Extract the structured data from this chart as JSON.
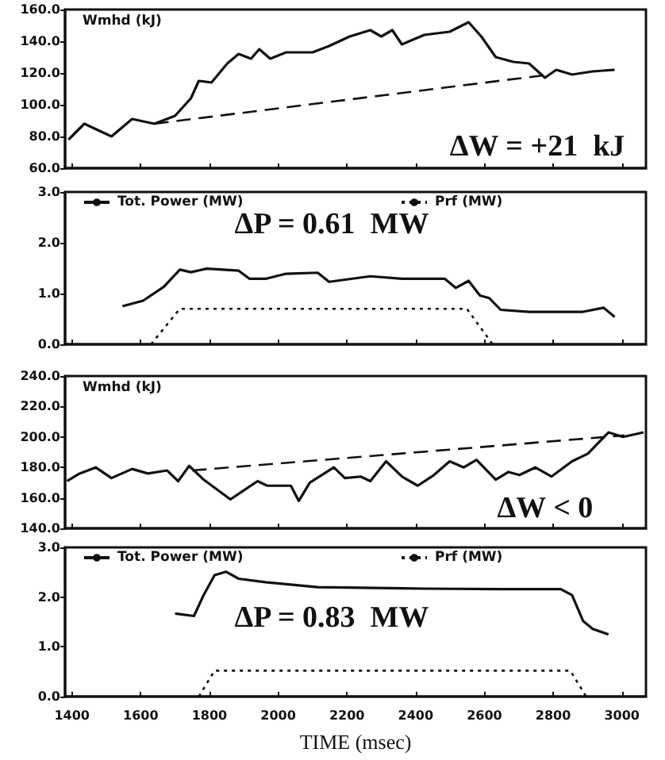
{
  "chart_data": [
    {
      "type": "line",
      "ylabel": "Wmhd (kJ)",
      "annotations": [
        "ΔW = +21  kJ"
      ],
      "marker": "none",
      "tick_labels": "y",
      "xlim": [
        1380,
        3070
      ],
      "xticks": [
        1400,
        1600,
        1800,
        2000,
        2200,
        2400,
        2600,
        2800,
        3000
      ],
      "ylim": [
        60,
        160
      ],
      "yticks": [
        {
          "value": 60,
          "label": "60.0"
        },
        {
          "value": 80,
          "label": "80.0"
        },
        {
          "value": 100,
          "label": "100.0"
        },
        {
          "value": 120,
          "label": "120.0"
        },
        {
          "value": 140,
          "label": "140.0"
        },
        {
          "value": 160,
          "label": "160.0"
        }
      ],
      "series": [
        {
          "color": "#111111",
          "line_style": "solid",
          "x": [
            1390,
            1436,
            1515,
            1575,
            1640,
            1700,
            1746,
            1769,
            1806,
            1852,
            1885,
            1921,
            1945,
            1977,
            2023,
            2100,
            2148,
            2208,
            2268,
            2300,
            2332,
            2360,
            2425,
            2499,
            2554,
            2591,
            2633,
            2684,
            2730,
            2776,
            2809,
            2855,
            2915,
            2979
          ],
          "values": [
            78,
            88,
            80,
            91,
            88,
            93,
            104,
            115,
            114,
            126,
            132,
            129,
            135,
            129,
            133,
            133,
            137,
            143,
            147,
            143,
            147,
            138,
            144,
            146,
            152,
            143,
            130,
            127,
            126,
            117,
            122,
            119,
            121,
            122
          ]
        },
        {
          "color": "#111111",
          "line_style": "dashed",
          "x": [
            1640,
            2790
          ],
          "values": [
            88,
            119
          ]
        }
      ]
    },
    {
      "type": "line",
      "marker": "none",
      "legend": "top left",
      "annotations": [
        "ΔP = 0.61  MW"
      ],
      "tick_labels": "y",
      "xlim": [
        1380,
        3070
      ],
      "xticks": [
        1400,
        1600,
        1800,
        2000,
        2200,
        2400,
        2600,
        2800,
        3000
      ],
      "ylim": [
        0,
        3
      ],
      "yticks": [
        {
          "value": 0,
          "label": "0.0"
        },
        {
          "value": 1,
          "label": "1.0"
        },
        {
          "value": 2,
          "label": "2.0"
        },
        {
          "value": 3,
          "label": "3.0"
        }
      ],
      "series": [
        {
          "name": "Tot. Power (MW)",
          "color": "#111111",
          "line_style": "solid",
          "x": [
            1547,
            1607,
            1667,
            1714,
            1746,
            1792,
            1885,
            1917,
            1963,
            2023,
            2115,
            2148,
            2268,
            2360,
            2485,
            2517,
            2554,
            2587,
            2614,
            2647,
            2730,
            2887,
            2947,
            2979
          ],
          "values": [
            0.75,
            0.86,
            1.13,
            1.47,
            1.42,
            1.49,
            1.45,
            1.29,
            1.29,
            1.39,
            1.41,
            1.23,
            1.34,
            1.29,
            1.29,
            1.11,
            1.25,
            0.96,
            0.91,
            0.68,
            0.64,
            0.64,
            0.72,
            0.54
          ]
        },
        {
          "name": "Prf (MW)",
          "color": "#111111",
          "line_style": "dotted",
          "x": [
            1630,
            1714,
            2549,
            2624
          ],
          "values": [
            0,
            0.7,
            0.7,
            0
          ]
        }
      ]
    },
    {
      "type": "line",
      "ylabel": "Wmhd (kJ)",
      "annotations": [
        "ΔW < 0"
      ],
      "marker": "none",
      "tick_labels": "y",
      "xlim": [
        1380,
        3070
      ],
      "xticks": [
        1400,
        1600,
        1800,
        2000,
        2200,
        2400,
        2600,
        2800,
        3000
      ],
      "ylim": [
        140,
        240
      ],
      "yticks": [
        {
          "value": 140,
          "label": "140.0"
        },
        {
          "value": 160,
          "label": "160.0"
        },
        {
          "value": 180,
          "label": "180.0"
        },
        {
          "value": 200,
          "label": "200.0"
        },
        {
          "value": 220,
          "label": "220.0"
        },
        {
          "value": 240,
          "label": "240.0"
        }
      ],
      "series": [
        {
          "color": "#111111",
          "line_style": "solid",
          "x": [
            1386,
            1422,
            1469,
            1515,
            1575,
            1621,
            1677,
            1709,
            1741,
            1783,
            1861,
            1894,
            1940,
            1968,
            2037,
            2060,
            2092,
            2162,
            2194,
            2240,
            2268,
            2314,
            2360,
            2406,
            2453,
            2499,
            2540,
            2577,
            2633,
            2670,
            2702,
            2748,
            2795,
            2855,
            2901,
            2961,
            3003,
            3063
          ],
          "values": [
            171,
            176,
            180,
            173,
            179,
            176,
            178,
            171,
            181,
            172,
            159,
            164,
            171,
            168,
            168,
            158,
            170,
            180,
            173,
            174,
            171,
            184,
            174,
            168,
            175,
            184,
            180,
            185,
            172,
            177,
            175,
            180,
            174,
            184,
            189,
            203,
            200,
            203
          ]
        },
        {
          "color": "#111111",
          "line_style": "dashed",
          "x": [
            1750,
            3007
          ],
          "values": [
            178,
            201
          ]
        }
      ]
    },
    {
      "type": "line",
      "marker": "none",
      "legend": "top left",
      "annotations": [
        "ΔP = 0.83  MW"
      ],
      "xlabel": "TIME (msec)",
      "xlim": [
        1380,
        3070
      ],
      "xticks": [
        1400,
        1600,
        1800,
        2000,
        2200,
        2400,
        2600,
        2800,
        3000
      ],
      "ylim": [
        0,
        3
      ],
      "yticks": [
        {
          "value": 0,
          "label": "0.0"
        },
        {
          "value": 1,
          "label": "1.0"
        },
        {
          "value": 2,
          "label": "2.0"
        },
        {
          "value": 3,
          "label": "3.0"
        }
      ],
      "series": [
        {
          "name": "Tot. Power (MW)",
          "color": "#111111",
          "line_style": "solid",
          "x": [
            1700,
            1755,
            1783,
            1815,
            1848,
            1885,
            1963,
            2115,
            2425,
            2656,
            2822,
            2855,
            2887,
            2915,
            2961
          ],
          "values": [
            1.67,
            1.62,
            2.04,
            2.44,
            2.51,
            2.37,
            2.3,
            2.2,
            2.17,
            2.16,
            2.16,
            2.04,
            1.52,
            1.36,
            1.25
          ]
        },
        {
          "name": "Prf (MW)",
          "color": "#111111",
          "line_style": "dotted",
          "x": [
            1769,
            1815,
            2850,
            2896
          ],
          "values": [
            0,
            0.52,
            0.52,
            0
          ]
        }
      ]
    }
  ]
}
